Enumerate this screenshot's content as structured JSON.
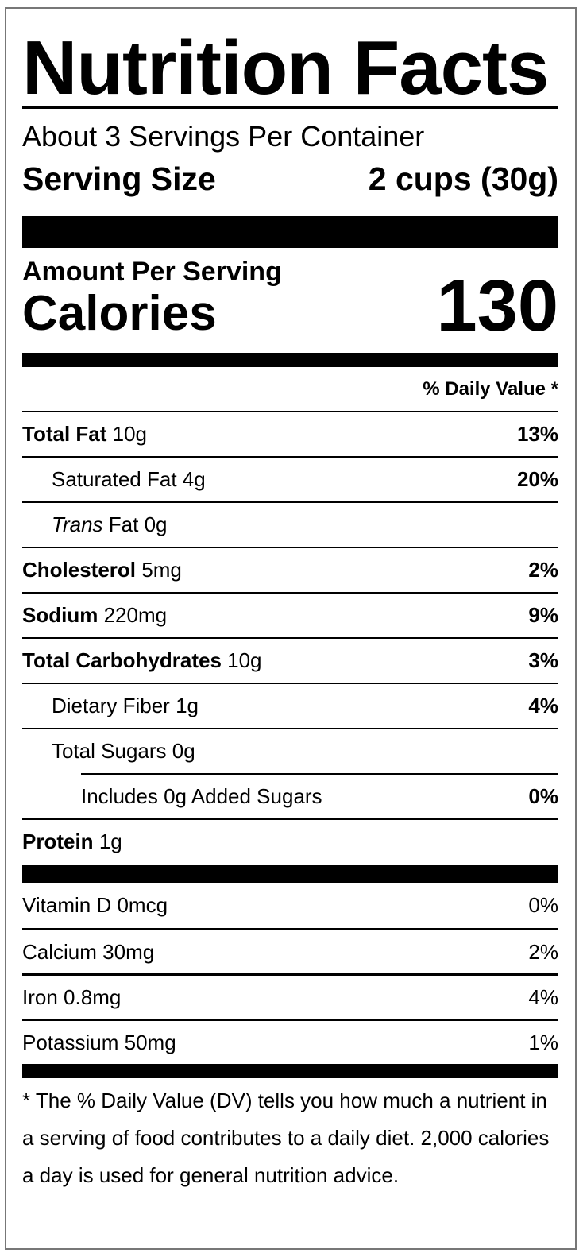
{
  "title": "Nutrition Facts",
  "servings_per_container": "About 3 Servings Per Container",
  "serving_size": {
    "label": "Serving Size",
    "value": "2 cups (30g)"
  },
  "amount_per_serving": "Amount Per Serving",
  "calories": {
    "label": "Calories",
    "value": "130"
  },
  "daily_value_header": "% Daily Value *",
  "nutrients": [
    {
      "name": "Total Fat",
      "amount": "10g",
      "dv": "13%"
    },
    {
      "name": "Saturated Fat",
      "amount": "4g",
      "dv": "20%"
    },
    {
      "name": "Trans",
      "name_suffix": "Fat",
      "amount": "0g",
      "dv": ""
    },
    {
      "name": "Cholesterol",
      "amount": "5mg",
      "dv": "2%"
    },
    {
      "name": "Sodium",
      "amount": "220mg",
      "dv": "9%"
    },
    {
      "name": "Total Carbohydrates",
      "amount": "10g",
      "dv": "3%"
    },
    {
      "name": "Dietary Fiber",
      "amount": "1g",
      "dv": "4%"
    },
    {
      "name": "Total Sugars",
      "amount": "0g",
      "dv": ""
    },
    {
      "name": "Includes 0g Added Sugars",
      "amount": "",
      "dv": "0%"
    },
    {
      "name": "Protein",
      "amount": "1g",
      "dv": ""
    }
  ],
  "vitamins": [
    {
      "name": "Vitamin D",
      "amount": "0mcg",
      "dv": "0%"
    },
    {
      "name": "Calcium",
      "amount": "30mg",
      "dv": "2%"
    },
    {
      "name": "Iron",
      "amount": "0.8mg",
      "dv": "4%"
    },
    {
      "name": "Potassium",
      "amount": "50mg",
      "dv": "1%"
    }
  ],
  "footnote": "* The % Daily Value (DV) tells you how much a nutrient in a serving of food contributes to a daily diet. 2,000 calories a day is used for general nutrition advice."
}
